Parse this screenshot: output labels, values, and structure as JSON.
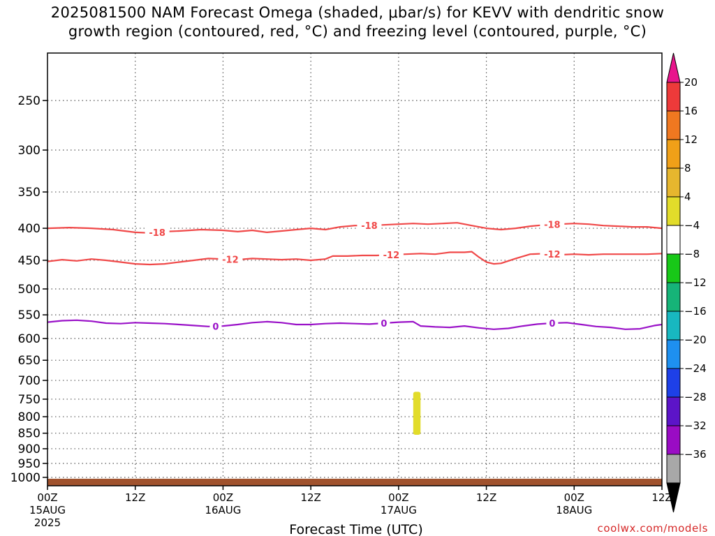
{
  "title_lines": [
    "2025081500 NAM Forecast Omega (shaded, μbar/s) for KEVV with dendritic snow",
    "growth region (contoured, red, °C) and freezing level (contoured, purple, °C)"
  ],
  "watermark": "coolwx.com/models",
  "chart_data": {
    "type": "contour",
    "xlabel": "Forecast Time (UTC)",
    "ylabel": "",
    "x_range_hours": [
      0,
      84
    ],
    "y_log_scale": true,
    "y_range": [
      1050,
      180
    ],
    "grid": true,
    "x_ticks": [
      {
        "hour": 0,
        "label": "00Z",
        "date": "15AUG",
        "year": "2025"
      },
      {
        "hour": 12,
        "label": "12Z",
        "date": "",
        "year": ""
      },
      {
        "hour": 24,
        "label": "00Z",
        "date": "16AUG",
        "year": ""
      },
      {
        "hour": 36,
        "label": "12Z",
        "date": "",
        "year": ""
      },
      {
        "hour": 48,
        "label": "00Z",
        "date": "17AUG",
        "year": ""
      },
      {
        "hour": 60,
        "label": "12Z",
        "date": "",
        "year": ""
      },
      {
        "hour": 72,
        "label": "00Z",
        "date": "18AUG",
        "year": ""
      },
      {
        "hour": 84,
        "label": "12Z",
        "date": "",
        "year": ""
      }
    ],
    "y_ticks": [
      250,
      300,
      350,
      400,
      450,
      500,
      550,
      600,
      650,
      700,
      750,
      800,
      850,
      900,
      950,
      1000
    ],
    "ground_pressure": 1005,
    "ground_color": "#a0522d",
    "contours": [
      {
        "name": "-18",
        "color": "#f04848",
        "label_at_hours": [
          15,
          44,
          69
        ],
        "points": [
          [
            0,
            400
          ],
          [
            3,
            399
          ],
          [
            6,
            400
          ],
          [
            9,
            402
          ],
          [
            12,
            406
          ],
          [
            14,
            407
          ],
          [
            16,
            405
          ],
          [
            18,
            404
          ],
          [
            21,
            402
          ],
          [
            24,
            403
          ],
          [
            26,
            405
          ],
          [
            28,
            403
          ],
          [
            30,
            406
          ],
          [
            32,
            404
          ],
          [
            34,
            402
          ],
          [
            36,
            400
          ],
          [
            38,
            402
          ],
          [
            40,
            398
          ],
          [
            42,
            396
          ],
          [
            44,
            396
          ],
          [
            46,
            395
          ],
          [
            48,
            394
          ],
          [
            50,
            393
          ],
          [
            52,
            394
          ],
          [
            54,
            393
          ],
          [
            56,
            392
          ],
          [
            58,
            396
          ],
          [
            60,
            400
          ],
          [
            62,
            402
          ],
          [
            64,
            400
          ],
          [
            66,
            397
          ],
          [
            68,
            395
          ],
          [
            70,
            394
          ],
          [
            72,
            393
          ],
          [
            74,
            394
          ],
          [
            76,
            396
          ],
          [
            78,
            397
          ],
          [
            80,
            398
          ],
          [
            82,
            398
          ],
          [
            84,
            400
          ]
        ]
      },
      {
        "name": "-12",
        "color": "#f04848",
        "label_at_hours": [
          25,
          47,
          69
        ],
        "points": [
          [
            0,
            452
          ],
          [
            2,
            449
          ],
          [
            4,
            451
          ],
          [
            6,
            448
          ],
          [
            8,
            450
          ],
          [
            10,
            453
          ],
          [
            12,
            456
          ],
          [
            14,
            457
          ],
          [
            16,
            456
          ],
          [
            18,
            453
          ],
          [
            20,
            450
          ],
          [
            22,
            447
          ],
          [
            24,
            448
          ],
          [
            26,
            449
          ],
          [
            28,
            447
          ],
          [
            30,
            448
          ],
          [
            32,
            449
          ],
          [
            34,
            448
          ],
          [
            36,
            450
          ],
          [
            38,
            448
          ],
          [
            39,
            443
          ],
          [
            41,
            443
          ],
          [
            43,
            442
          ],
          [
            45,
            442
          ],
          [
            47,
            441
          ],
          [
            49,
            440
          ],
          [
            51,
            439
          ],
          [
            53,
            440
          ],
          [
            55,
            437
          ],
          [
            57,
            437
          ],
          [
            58,
            436
          ],
          [
            59,
            445
          ],
          [
            60,
            453
          ],
          [
            61,
            456
          ],
          [
            62,
            455
          ],
          [
            64,
            447
          ],
          [
            66,
            440
          ],
          [
            68,
            439
          ],
          [
            70,
            441
          ],
          [
            72,
            440
          ],
          [
            74,
            441
          ],
          [
            76,
            440
          ],
          [
            78,
            440
          ],
          [
            80,
            440
          ],
          [
            82,
            440
          ],
          [
            84,
            439
          ]
        ]
      },
      {
        "name": "0",
        "color": "#9a12c8",
        "label_at_hours": [
          23,
          46,
          69
        ],
        "points": [
          [
            0,
            565
          ],
          [
            2,
            562
          ],
          [
            4,
            561
          ],
          [
            6,
            563
          ],
          [
            8,
            567
          ],
          [
            10,
            568
          ],
          [
            12,
            566
          ],
          [
            14,
            567
          ],
          [
            16,
            568
          ],
          [
            18,
            570
          ],
          [
            20,
            572
          ],
          [
            22,
            574
          ],
          [
            24,
            573
          ],
          [
            26,
            570
          ],
          [
            28,
            566
          ],
          [
            30,
            564
          ],
          [
            32,
            566
          ],
          [
            34,
            570
          ],
          [
            36,
            570
          ],
          [
            38,
            568
          ],
          [
            40,
            567
          ],
          [
            42,
            568
          ],
          [
            44,
            569
          ],
          [
            46,
            567
          ],
          [
            48,
            565
          ],
          [
            50,
            564
          ],
          [
            51,
            573
          ],
          [
            53,
            575
          ],
          [
            55,
            576
          ],
          [
            57,
            573
          ],
          [
            59,
            577
          ],
          [
            61,
            580
          ],
          [
            63,
            578
          ],
          [
            65,
            573
          ],
          [
            67,
            569
          ],
          [
            69,
            567
          ],
          [
            71,
            566
          ],
          [
            73,
            570
          ],
          [
            75,
            574
          ],
          [
            77,
            576
          ],
          [
            79,
            580
          ],
          [
            81,
            579
          ],
          [
            83,
            572
          ],
          [
            84,
            570
          ]
        ]
      }
    ],
    "shaded_regions": [
      {
        "hour_from": 50.0,
        "hour_to": 51.0,
        "p_top": 730,
        "p_bottom": 855,
        "color": "#e2dc2a"
      }
    ],
    "colorbar": {
      "labels": [
        "20",
        "16",
        "12",
        "8",
        "4",
        "−4",
        "−8",
        "−12",
        "−16",
        "−20",
        "−24",
        "−28",
        "−32",
        "−36"
      ],
      "colors": [
        "#ed3a3a",
        "#f07820",
        "#f0a018",
        "#e6b62e",
        "#e2dc2a",
        "#ffffff",
        "#18c818",
        "#16b478",
        "#18b8c0",
        "#1e90f0",
        "#1e40e8",
        "#5c14c8",
        "#9a0cc4",
        "#a8a8a8"
      ],
      "top_arrow_color": "#e8158c",
      "bottom_arrow_color": "#000000"
    }
  }
}
